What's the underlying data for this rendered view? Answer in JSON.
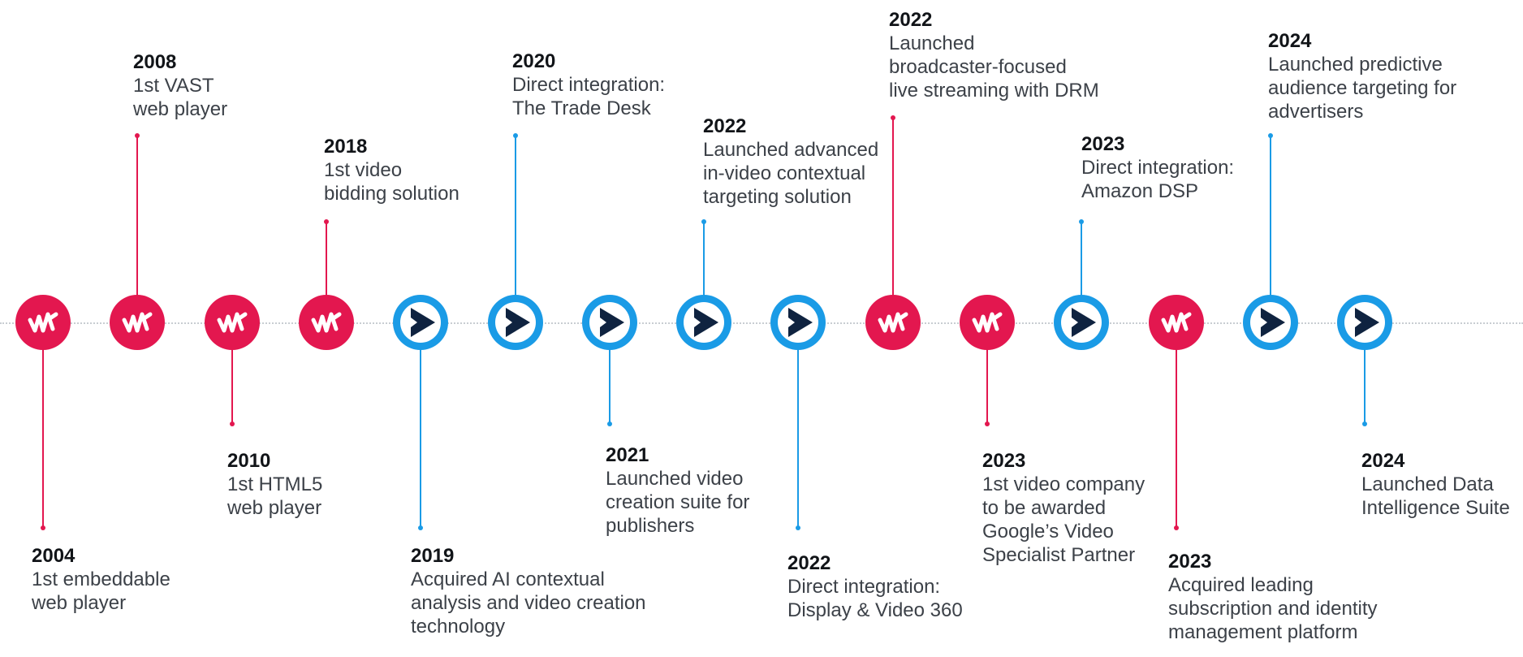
{
  "colors": {
    "brand_red": "#e3174f",
    "brand_blue": "#1a9be6",
    "dark_play": "#0f2340",
    "axis": "#c8cdd2"
  },
  "legend_icons": {
    "red": "jw-player-logo-icon",
    "blue": "play-logo-icon"
  },
  "milestones": [
    {
      "year": "2004",
      "lines": [
        "1st embeddable",
        "web player"
      ],
      "icon": "red",
      "side": "below"
    },
    {
      "year": "2008",
      "lines": [
        "1st VAST",
        "web player"
      ],
      "icon": "red",
      "side": "above"
    },
    {
      "year": "2010",
      "lines": [
        "1st HTML5",
        "web player"
      ],
      "icon": "red",
      "side": "below"
    },
    {
      "year": "2018",
      "lines": [
        "1st video",
        "bidding solution"
      ],
      "icon": "red",
      "side": "above"
    },
    {
      "year": "2019",
      "lines": [
        "Acquired AI contextual",
        "analysis and video creation",
        "technology"
      ],
      "icon": "blue",
      "side": "below"
    },
    {
      "year": "2020",
      "lines": [
        "Direct integration:",
        "The Trade Desk"
      ],
      "icon": "blue",
      "side": "above"
    },
    {
      "year": "2021",
      "lines": [
        "Launched video",
        "creation suite for",
        "publishers"
      ],
      "icon": "blue",
      "side": "below"
    },
    {
      "year": "2022",
      "lines": [
        "Launched advanced",
        "in-video contextual",
        "targeting solution"
      ],
      "icon": "blue",
      "side": "above"
    },
    {
      "year": "2022",
      "lines": [
        "Direct integration:",
        "Display & Video 360"
      ],
      "icon": "blue",
      "side": "below"
    },
    {
      "year": "2022",
      "lines": [
        "Launched",
        "broadcaster-focused",
        "live streaming with DRM"
      ],
      "icon": "red",
      "side": "above"
    },
    {
      "year": "2023",
      "lines": [
        "1st video company",
        "to be awarded",
        "Google’s Video",
        "Specialist Partner"
      ],
      "icon": "red",
      "side": "below"
    },
    {
      "year": "2023",
      "lines": [
        "Direct integration:",
        "Amazon DSP"
      ],
      "icon": "blue",
      "side": "above"
    },
    {
      "year": "2023",
      "lines": [
        "Acquired leading",
        "subscription and identity",
        "management platform"
      ],
      "icon": "red",
      "side": "below"
    },
    {
      "year": "2024",
      "lines": [
        "Launched predictive",
        "audience targeting for",
        "advertisers"
      ],
      "icon": "blue",
      "side": "above"
    },
    {
      "year": "2024",
      "lines": [
        "Launched Data",
        "Intelligence Suite"
      ],
      "icon": "blue",
      "side": "below"
    }
  ]
}
